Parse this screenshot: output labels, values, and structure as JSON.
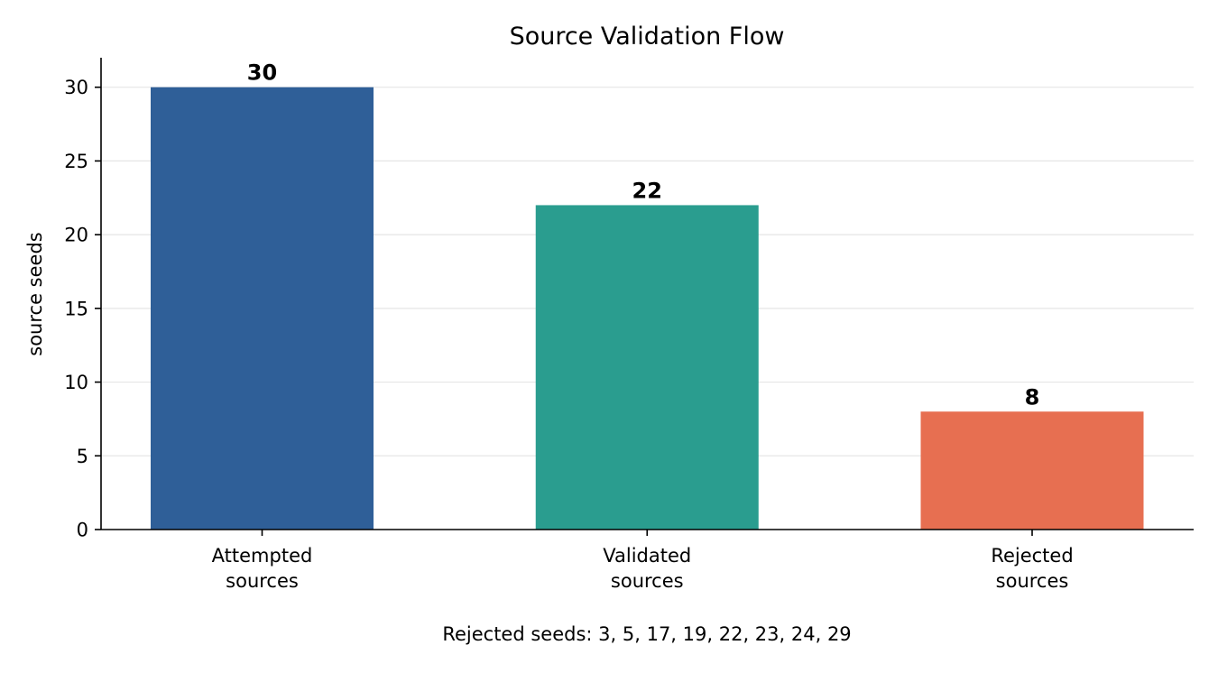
{
  "chart_data": {
    "type": "bar",
    "title": "Source Validation Flow",
    "xlabel": "",
    "ylabel": "source seeds",
    "categories": [
      [
        "Attempted",
        "sources"
      ],
      [
        "Validated",
        "sources"
      ],
      [
        "Rejected",
        "sources"
      ]
    ],
    "values": [
      30,
      22,
      8
    ],
    "colors": [
      "#2f5f98",
      "#2a9d8f",
      "#e76f51"
    ],
    "ylim": [
      0,
      32
    ],
    "yticks": [
      0,
      5,
      10,
      15,
      20,
      25,
      30
    ],
    "grid": "y",
    "footnote": "Rejected seeds: 3, 5, 17, 19, 22, 23, 24, 29"
  }
}
